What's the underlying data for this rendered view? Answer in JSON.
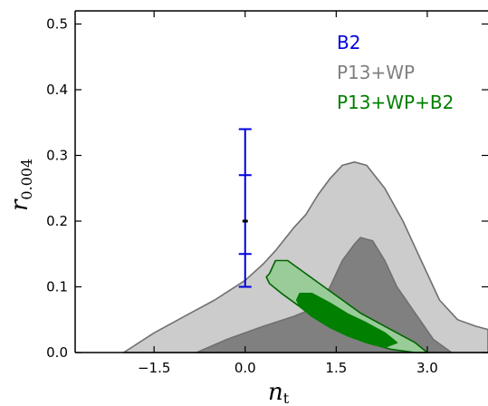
{
  "chart_data": {
    "type": "area",
    "xlabel": "n",
    "xlabel_subscript": "t",
    "ylabel": "r",
    "ylabel_subscript": "0.004",
    "xlim": [
      -2.8,
      4.0
    ],
    "ylim": [
      0.0,
      0.52
    ],
    "x_ticks": [
      -1.5,
      0.0,
      1.5,
      3.0
    ],
    "x_tick_labels": [
      "−1.5",
      "0.0",
      "1.5",
      "3.0"
    ],
    "y_ticks": [
      0.0,
      0.1,
      0.2,
      0.3,
      0.4,
      0.5
    ],
    "y_tick_labels": [
      "0.0",
      "0.1",
      "0.2",
      "0.3",
      "0.4",
      "0.5"
    ],
    "grid": false,
    "legend_position": "top-right",
    "legend": [
      {
        "label": "B2",
        "color": "#0000dd"
      },
      {
        "label": "P13+WP",
        "color": "#808080"
      },
      {
        "label": "P13+WP+B2",
        "color": "#007f00"
      }
    ],
    "series": [
      {
        "name": "P13+WP",
        "kind": "contour-95",
        "fill": "#cccccc",
        "stroke": "#707070",
        "x": [
          -2.0,
          -1.5,
          -1.0,
          -0.5,
          0.0,
          0.3,
          0.5,
          0.8,
          1.0,
          1.2,
          1.4,
          1.6,
          1.8,
          2.0,
          2.3,
          2.6,
          2.9,
          3.2,
          3.5,
          3.8,
          4.0,
          4.0,
          3.8,
          3.5,
          -2.0
        ],
        "y": [
          0.0,
          0.03,
          0.055,
          0.08,
          0.11,
          0.135,
          0.155,
          0.19,
          0.21,
          0.24,
          0.265,
          0.285,
          0.29,
          0.285,
          0.25,
          0.2,
          0.14,
          0.08,
          0.05,
          0.04,
          0.035,
          0.0,
          0.0,
          0.0,
          0.0
        ]
      },
      {
        "name": "P13+WP",
        "kind": "contour-68",
        "fill": "#808080",
        "stroke": "#707070",
        "x": [
          -0.8,
          -0.3,
          0.3,
          0.8,
          1.2,
          1.4,
          1.6,
          1.8,
          1.9,
          2.1,
          2.3,
          2.5,
          2.8,
          3.1,
          3.4,
          -0.8
        ],
        "y": [
          0.0,
          0.02,
          0.04,
          0.055,
          0.07,
          0.1,
          0.14,
          0.165,
          0.175,
          0.17,
          0.14,
          0.1,
          0.06,
          0.02,
          0.0,
          0.0
        ]
      },
      {
        "name": "P13+WP+B2",
        "kind": "contour-95",
        "fill": "#99cc99",
        "stroke": "#006400",
        "x": [
          0.4,
          0.5,
          0.7,
          1.0,
          1.3,
          1.6,
          1.9,
          2.2,
          2.5,
          2.8,
          3.0,
          2.8,
          2.4,
          2.0,
          1.6,
          1.2,
          0.9,
          0.6,
          0.4,
          0.35,
          0.4
        ],
        "y": [
          0.12,
          0.14,
          0.14,
          0.12,
          0.1,
          0.08,
          0.06,
          0.045,
          0.03,
          0.015,
          0.0,
          0.0,
          0.005,
          0.015,
          0.03,
          0.05,
          0.07,
          0.09,
          0.105,
          0.115,
          0.12
        ]
      },
      {
        "name": "P13+WP+B2",
        "kind": "contour-68",
        "fill": "#007f00",
        "stroke": "#007f00",
        "x": [
          0.9,
          1.1,
          1.4,
          1.7,
          2.0,
          2.3,
          2.5,
          2.3,
          2.0,
          1.7,
          1.4,
          1.1,
          0.9,
          0.85,
          0.9
        ],
        "y": [
          0.09,
          0.09,
          0.075,
          0.058,
          0.045,
          0.03,
          0.015,
          0.008,
          0.015,
          0.025,
          0.038,
          0.055,
          0.07,
          0.08,
          0.09
        ]
      }
    ],
    "error_bar": {
      "name": "B2",
      "x": 0.0,
      "y": 0.2,
      "inner": [
        0.15,
        0.27
      ],
      "outer": [
        0.1,
        0.34
      ],
      "color": "#0000dd"
    }
  }
}
